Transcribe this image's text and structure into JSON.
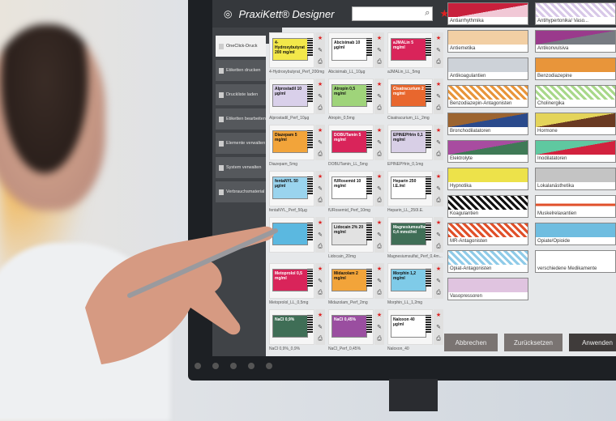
{
  "app": {
    "title": "PraxiKett® Designer",
    "search_placeholder": "",
    "close_icon": "close-x-icon"
  },
  "sidebar": {
    "items": [
      {
        "label": "OneClick-Druck",
        "active": true
      },
      {
        "label": "Etiketten drucken"
      },
      {
        "label": "Druckliste laden"
      },
      {
        "label": "Etiketten bearbeiten"
      },
      {
        "label": "Elemente verwalten"
      },
      {
        "label": "System verwalten"
      },
      {
        "label": "Verbrauchsmaterial"
      }
    ]
  },
  "labels": [
    {
      "name": "4-Hydroxybutyrat_Perf_200mg",
      "text": "4-Hydroxybutyrat 200 mg/ml",
      "color": "#f3e84a"
    },
    {
      "name": "Abciximab_LL_10µg",
      "text": "Abciximab 10 µg/ml",
      "color": "#ffffff"
    },
    {
      "name": "aJMALin_LL_5mg",
      "text": "aJMALin 5 mg/ml",
      "color": "#d9245a"
    },
    {
      "name": "Alprostadil_Perf_10µg",
      "text": "Alprostadil 10 µg/ml",
      "color": "#d9d0ea"
    },
    {
      "name": "Atropin_0,5mg",
      "text": "Atropin 0,5 mg/ml",
      "color": "#9fd47a"
    },
    {
      "name": "Cisatracurium_LL_2mg",
      "text": "Cisatracurium 2 mg/ml",
      "color": "#e8672e"
    },
    {
      "name": "Diazepam_5mg",
      "text": "Diazepam 5 mg/ml",
      "color": "#f2a43a"
    },
    {
      "name": "DOBUTamin_LL_5mg",
      "text": "DOBUTamin 5 mg/ml",
      "color": "#d9245a"
    },
    {
      "name": "EPINEPHrin_0,1mg",
      "text": "EPINEPHrin 0,1 mg/ml",
      "color": "#d8cfe6"
    },
    {
      "name": "fentaNYL_Perf_50µg",
      "text": "fentaNYL 50 µg/ml",
      "color": "#9ad4ee"
    },
    {
      "name": "fURosemid_Perf_10mg",
      "text": "fURosemid 10 mg/ml",
      "color": "#ffffff"
    },
    {
      "name": "Heparin_LL_250I.E.",
      "text": "Heparin 250 I.E./ml",
      "color": "#ffffff"
    },
    {
      "name": "",
      "text": "",
      "color": "#5bb8e0"
    },
    {
      "name": "Lidocain_20mg",
      "text": "Lidocain 2% 20 mg/ml",
      "color": "#e2e2e2"
    },
    {
      "name": "Magnesiumsulfat_Perf_0,4m...",
      "text": "Magnesiumsulfat 0,4 mmol/ml",
      "color": "#3f6e56"
    },
    {
      "name": "Metoprolol_LL_0,5mg",
      "text": "Metoprolol 0,5 mg/ml",
      "color": "#d9245a"
    },
    {
      "name": "Midazolam_Perf_2mg",
      "text": "Midazolam 2 mg/ml",
      "color": "#f2a43a"
    },
    {
      "name": "Morphin_LL_1,2mg",
      "text": "Morphin 1,2 mg/ml",
      "color": "#7fcbe8"
    },
    {
      "name": "NaCl 0,9%_0,9%",
      "text": "NaCl 0,9%",
      "color": "#3f6e56"
    },
    {
      "name": "NaCl_Perf_0,45%",
      "text": "NaCl 0,45%",
      "color": "#9a4ea0"
    },
    {
      "name": "Naloxon_40",
      "text": "Naloxon 40 µg/ml",
      "color": "#ffffff"
    }
  ],
  "categories": [
    {
      "label": "Antiarrhythmika",
      "bg": "linear-gradient(170deg,#c8203c 55%,#f1c8d6 55%)"
    },
    {
      "label": "Antihypertonika/ Vaso...",
      "bg": "repeating-linear-gradient(45deg,#d8c8e8 0 3px,#fff 3px 6px)"
    },
    {
      "label": "Antiemetika",
      "bg": "#f2cfa4"
    },
    {
      "label": "Antikonvulsiva",
      "bg": "linear-gradient(170deg,#9a3a8c 50%,#777b82 50%)"
    },
    {
      "label": "Antikoagulantien",
      "bg": "#cdd2d8"
    },
    {
      "label": "Benzodiazepine",
      "bg": "#e8953a"
    },
    {
      "label": "Benzodiazepin-Antagonisten",
      "bg": "repeating-linear-gradient(45deg,#e8953a 0 3px,#fff 3px 6px)"
    },
    {
      "label": "Cholinergika",
      "bg": "repeating-linear-gradient(45deg,#a8d88a 0 3px,#fff 3px 6px)"
    },
    {
      "label": "Bronchodilatatoren",
      "bg": "linear-gradient(170deg,#9c6430 50%,#2a4a8c 50%)"
    },
    {
      "label": "Hormone",
      "bg": "linear-gradient(170deg,#e4d45a 50%,#6a3a22 50%)"
    },
    {
      "label": "Elektrolyte",
      "bg": "linear-gradient(170deg,#a84ca0 50%,#3f7a56 50%)"
    },
    {
      "label": "Inodilatatoren",
      "bg": "linear-gradient(170deg,#5fc8a0 50%,#d2223e 50%)"
    },
    {
      "label": "Hypnotika",
      "bg": "#ede24a"
    },
    {
      "label": "Lokalanästhetika",
      "bg": "#c4c4c4"
    },
    {
      "label": "Koagulantien",
      "bg": "repeating-linear-gradient(45deg,#111 0 3px,#fff 3px 6px)"
    },
    {
      "label": "Muskelrelaxantien",
      "bg": "linear-gradient(180deg,#fff 55%,#e0502a 55%,#e0502a 75%,#fff 75%)"
    },
    {
      "label": "MR-Antagonisten",
      "bg": "repeating-linear-gradient(45deg,#e0502a 0 3px,#fff 3px 6px)"
    },
    {
      "label": "Opiate/Opioide",
      "bg": "#6fbde0"
    },
    {
      "label": "Opiat-Antagonisten",
      "bg": "repeating-linear-gradient(45deg,#8fcbe8 0 3px,#fff 3px 6px)"
    },
    {
      "label": "verschiedene Medikamente",
      "bg": "#ffffff"
    },
    {
      "label": "Vasopressoren",
      "bg": "#e0c4e0"
    }
  ],
  "buttons": {
    "cancel": "Abbrechen",
    "reset": "Zurücksetzen",
    "apply": "Anwenden"
  },
  "colors": {
    "header": "#35383c",
    "sidebar": "#404347",
    "favorite_star": "#dd2222",
    "button": "#7a7472"
  }
}
